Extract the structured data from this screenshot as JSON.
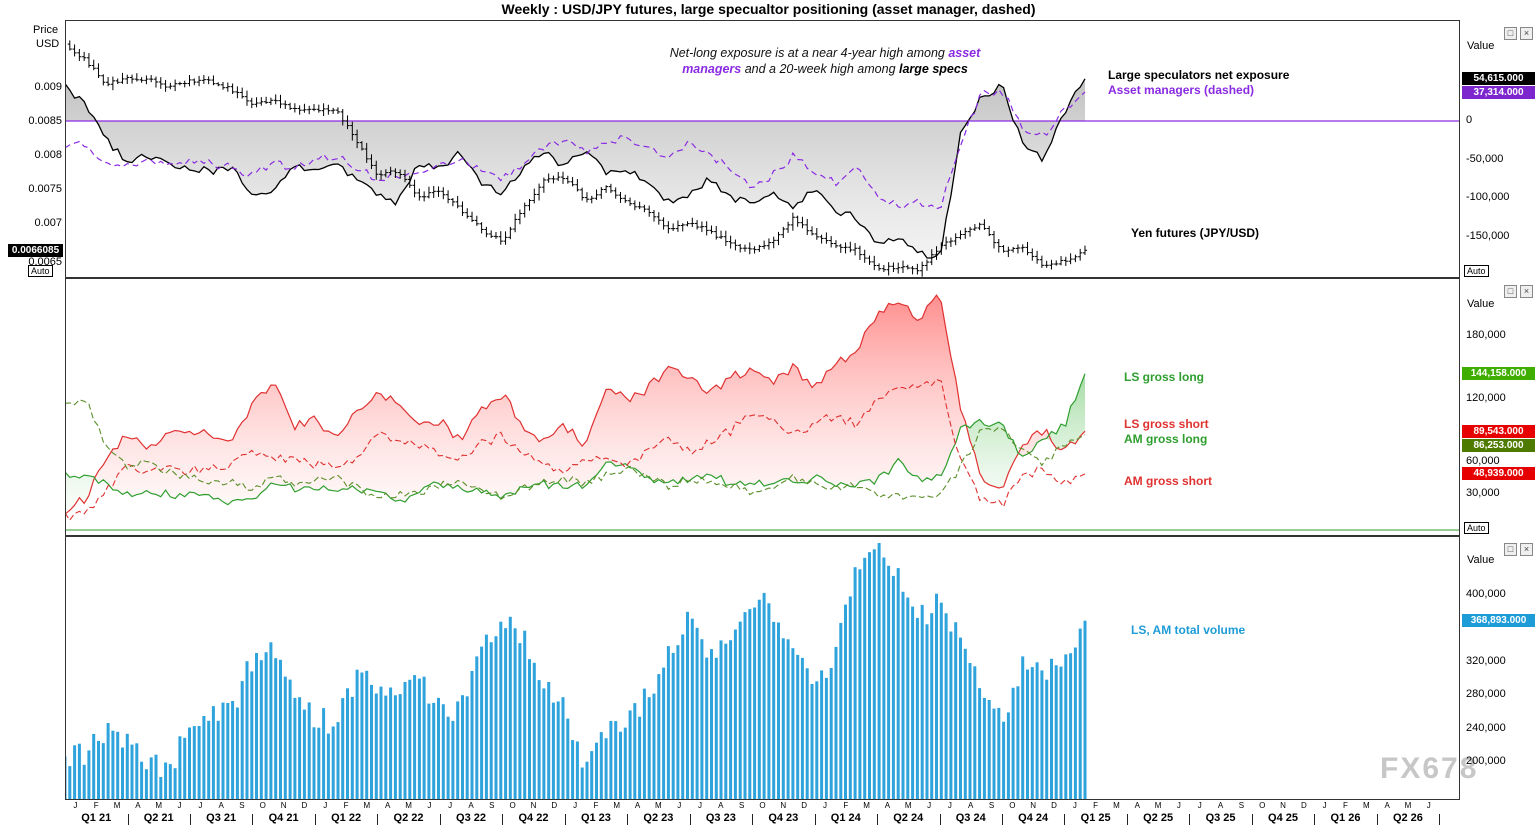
{
  "title": "Weekly : USD/JPY futures, large specualtor positioning (asset manager, dashed)",
  "watermark": "FX678",
  "auto_button_label": "Auto",
  "icons": {
    "restore": "□",
    "close": "×"
  },
  "colors": {
    "purple": "#8A2BE2",
    "black": "#000000",
    "red": "#E03131",
    "green": "#2E9E2E",
    "olive_green": "#5A8F29",
    "blue_bar": "#2FA3DC",
    "badge_black": "#000000",
    "badge_purple": "#7D26CD",
    "badge_green": "#3FAE00",
    "badge_dark_green": "#4F7A00",
    "badge_red": "#E60000",
    "badge_blue": "#1E9CD7"
  },
  "legends": {
    "ls_net": "Large speculators net exposure",
    "am_net": "Asset managers (dashed)",
    "yen": "Yen futures (JPY/USD)",
    "ls_long": "LS gross long",
    "ls_short": "LS gross short",
    "am_long": "AM gross long",
    "am_short": "AM gross short",
    "volume": "LS, AM total volume"
  },
  "annotation": {
    "l1a": "Net-long exposure is at a near 4-year high among ",
    "l1b": "asset",
    "l2a": "managers",
    "l2b": " and a 20-week high among ",
    "l2c": "large specs"
  },
  "axes": {
    "price_left": {
      "title1": "Price",
      "title2": "USD",
      "ticks": [
        {
          "t": "0.009",
          "v": 0.009
        },
        {
          "t": "0.0085",
          "v": 0.0085
        },
        {
          "t": "0.008",
          "v": 0.008
        },
        {
          "t": "0.0075",
          "v": 0.0075
        },
        {
          "t": "0.007",
          "v": 0.007
        },
        {
          "t": "0.0065",
          "v": 0.0065
        }
      ],
      "badge": {
        "t": "0.0066085",
        "v": 0.0066085,
        "bg": "badge_black"
      }
    },
    "p1_right": {
      "title": "Value",
      "ticks": [
        {
          "t": "0",
          "v": 0
        },
        {
          "t": "-50,000",
          "v": -50000
        },
        {
          "t": "-100,000",
          "v": -100000
        },
        {
          "t": "-150,000",
          "v": -150000
        }
      ],
      "badges": [
        {
          "t": "54,615.000",
          "v": 54615,
          "bg": "badge_black"
        },
        {
          "t": "37,314.000",
          "v": 37314,
          "bg": "badge_purple"
        }
      ]
    },
    "p2_right": {
      "title": "Value",
      "ticks": [
        {
          "t": "180,000",
          "v": 180000
        },
        {
          "t": "120,000",
          "v": 120000
        },
        {
          "t": "60,000",
          "v": 60000
        },
        {
          "t": "30,000",
          "v": 30000
        }
      ],
      "badges": [
        {
          "t": "144,158.000",
          "v": 144158,
          "bg": "badge_green"
        },
        {
          "t": "89,543.000",
          "v": 89543,
          "bg": "badge_red"
        },
        {
          "t": "86,253.000",
          "v": 86253,
          "bg": "badge_dark_green"
        },
        {
          "t": "48,939.000",
          "v": 48939,
          "bg": "badge_red"
        }
      ]
    },
    "p3_right": {
      "title": "Value",
      "ticks": [
        {
          "t": "400,000",
          "v": 400000
        },
        {
          "t": "320,000",
          "v": 320000
        },
        {
          "t": "280,000",
          "v": 280000
        },
        {
          "t": "240,000",
          "v": 240000
        },
        {
          "t": "200,000",
          "v": 200000
        }
      ],
      "badges": [
        {
          "t": "368,893.000",
          "v": 368893,
          "bg": "badge_blue"
        }
      ]
    },
    "x": {
      "month_letters": "JFMAMJJASONDJFMAMJJASONDJFMAMJJASONDJFMAMJJASONDJFMAMJJASONDJFMAMJ",
      "quarters": [
        "Q1 21",
        "Q2 21",
        "Q3 21",
        "Q4 21",
        "Q1 22",
        "Q2 22",
        "Q3 22",
        "Q4 22",
        "Q1 23",
        "Q2 23",
        "Q3 23",
        "Q4 23",
        "Q1 24",
        "Q2 24",
        "Q3 24",
        "Q4 24",
        "Q1 25",
        "Q2 25",
        "Q3 25",
        "Q4 25",
        "Q1 26",
        "Q2 26"
      ]
    }
  },
  "chart_data": {
    "type": "mixed",
    "frequency": "weekly chart; series values estimated at monthly anchors, Jan 2021 - Feb 2025",
    "x_months_from_jan_2021": [
      0,
      1,
      2,
      3,
      4,
      5,
      6,
      7,
      8,
      9,
      10,
      11,
      12,
      13,
      14,
      15,
      16,
      17,
      18,
      19,
      20,
      21,
      22,
      23,
      24,
      25,
      26,
      27,
      28,
      29,
      30,
      31,
      32,
      33,
      34,
      35,
      36,
      37,
      38,
      39,
      40,
      41,
      42,
      43,
      44,
      45,
      46,
      47,
      48,
      49
    ],
    "panels": [
      {
        "name": "price_and_net_exposure",
        "left_axis": {
          "label": "Price USD",
          "range": [
            0.0062,
            0.01
          ]
        },
        "right_axis": {
          "label": "Value",
          "range": [
            -203000,
            130600
          ]
        },
        "zero_line": {
          "value": 0,
          "color": "purple"
        },
        "series": [
          {
            "name": "yen_futures_jpy_usd",
            "type": "ohlc_bars",
            "axis": "left",
            "color": "black",
            "last_value": 0.0066085,
            "values": [
              0.00965,
              0.0094,
              0.00905,
              0.00915,
              0.00912,
              0.00902,
              0.00911,
              0.0091,
              0.00897,
              0.00877,
              0.00883,
              0.00869,
              0.00868,
              0.00869,
              0.00822,
              0.0077,
              0.00778,
              0.00737,
              0.0075,
              0.0072,
              0.00691,
              0.00673,
              0.00723,
              0.00763,
              0.00769,
              0.00734,
              0.00753,
              0.00733,
              0.00717,
              0.00693,
              0.00703,
              0.00687,
              0.0067,
              0.0066,
              0.00676,
              0.00709,
              0.00681,
              0.00667,
              0.00661,
              0.00634,
              0.00636,
              0.0063,
              0.00666,
              0.00684,
              0.007,
              0.00658,
              0.00666,
              0.00636,
              0.00645,
              0.0066085
            ]
          },
          {
            "name": "large_speculators_net_exposure",
            "type": "area_line",
            "axis": "right",
            "color": "black",
            "fill": "gray_gradient_to_zero",
            "last_value": 54615,
            "values": [
              45000,
              20000,
              -25000,
              -55000,
              -45000,
              -55000,
              -60000,
              -65000,
              -60000,
              -95000,
              -90000,
              -60000,
              -65000,
              -55000,
              -75000,
              -95000,
              -105000,
              -55000,
              -60000,
              -40000,
              -80000,
              -95000,
              -60000,
              -40000,
              -60000,
              -35000,
              -65000,
              -60000,
              -85000,
              -105000,
              -95000,
              -75000,
              -100000,
              -105000,
              -95000,
              -110000,
              -85000,
              -115000,
              -125000,
              -160000,
              -150000,
              -170000,
              -180000,
              -20000,
              30000,
              45000,
              -30000,
              -50000,
              10000,
              54615
            ]
          },
          {
            "name": "asset_managers_net_exposure",
            "type": "dashed_line",
            "axis": "right",
            "color": "purple",
            "last_value": 37314,
            "values": [
              -35000,
              -30000,
              -55000,
              -60000,
              -50000,
              -60000,
              -50000,
              -55000,
              -60000,
              -70000,
              -55000,
              -60000,
              -50000,
              -45000,
              -60000,
              -75000,
              -70000,
              -65000,
              -55000,
              -50000,
              -65000,
              -75000,
              -55000,
              -35000,
              -25000,
              -40000,
              -30000,
              -20000,
              -35000,
              -50000,
              -25000,
              -45000,
              -60000,
              -85000,
              -70000,
              -45000,
              -65000,
              -80000,
              -60000,
              -95000,
              -110000,
              -105000,
              -115000,
              -30000,
              35000,
              40000,
              -10000,
              -20000,
              15000,
              37314
            ]
          }
        ]
      },
      {
        "name": "gross_positions",
        "right_axis": {
          "label": "Value",
          "range": [
            -10000,
            235000
          ]
        },
        "series": [
          {
            "name": "ls_gross_long",
            "type": "line",
            "color": "green",
            "last_value": 144158,
            "values": [
              48000,
              45000,
              40000,
              30000,
              32000,
              30000,
              28000,
              25000,
              22000,
              25000,
              40000,
              35000,
              35000,
              32000,
              35000,
              30000,
              22000,
              35000,
              40000,
              38000,
              30000,
              28000,
              35000,
              40000,
              35000,
              40000,
              60000,
              55000,
              45000,
              42000,
              45000,
              48000,
              40000,
              42000,
              40000,
              42000,
              45000,
              40000,
              38000,
              42000,
              60000,
              45000,
              45000,
              90000,
              100000,
              95000,
              65000,
              80000,
              95000,
              144158
            ]
          },
          {
            "name": "ls_gross_short",
            "type": "line",
            "color": "red",
            "fill": "red_green_band_vs_ls_gross_long",
            "last_value": 89543,
            "values": [
              15000,
              25000,
              65000,
              85000,
              75000,
              85000,
              90000,
              85000,
              80000,
              115000,
              135000,
              95000,
              100000,
              85000,
              110000,
              125000,
              120000,
              95000,
              100000,
              80000,
              110000,
              125000,
              95000,
              80000,
              95000,
              75000,
              130000,
              120000,
              130000,
              150000,
              140000,
              125000,
              140000,
              150000,
              135000,
              150000,
              130000,
              155000,
              165000,
              200000,
              215000,
              195000,
              225000,
              110000,
              45000,
              35000,
              75000,
              90000,
              70000,
              89543
            ]
          },
          {
            "name": "am_gross_long",
            "type": "dashed_line",
            "color": "olive_green",
            "last_value": 86253,
            "values": [
              115000,
              120000,
              75000,
              55000,
              60000,
              50000,
              45000,
              42000,
              40000,
              35000,
              45000,
              40000,
              42000,
              45000,
              35000,
              28000,
              30000,
              32000,
              38000,
              40000,
              32000,
              28000,
              35000,
              42000,
              45000,
              40000,
              48000,
              55000,
              45000,
              38000,
              45000,
              42000,
              38000,
              30000,
              35000,
              45000,
              40000,
              35000,
              40000,
              30000,
              28000,
              30000,
              28000,
              55000,
              90000,
              95000,
              70000,
              60000,
              75000,
              86253
            ]
          },
          {
            "name": "am_gross_short",
            "type": "dashed_line",
            "color": "red",
            "last_value": 48939,
            "values": [
              8000,
              12000,
              35000,
              55000,
              50000,
              55000,
              52000,
              55000,
              58000,
              70000,
              65000,
              62000,
              58000,
              55000,
              65000,
              85000,
              80000,
              75000,
              70000,
              65000,
              78000,
              85000,
              70000,
              55000,
              52000,
              60000,
              62000,
              55000,
              70000,
              85000,
              70000,
              80000,
              90000,
              110000,
              100000,
              85000,
              95000,
              105000,
              95000,
              120000,
              135000,
              130000,
              140000,
              60000,
              25000,
              20000,
              45000,
              55000,
              40000,
              48939
            ]
          }
        ]
      },
      {
        "name": "total_volume",
        "right_axis": {
          "label": "Value",
          "range": [
            155000,
            470000
          ]
        },
        "series": [
          {
            "name": "ls_am_total_volume",
            "type": "bar",
            "color": "blue_bar",
            "last_value": 368893,
            "values": [
              205000,
              210000,
              240000,
              225000,
              200000,
              190000,
              250000,
              255000,
              265000,
              320000,
              330000,
              280000,
              255000,
              245000,
              300000,
              295000,
              290000,
              295000,
              270000,
              260000,
              330000,
              365000,
              350000,
              300000,
              260000,
              195000,
              230000,
              250000,
              280000,
              330000,
              380000,
              330000,
              340000,
              400000,
              380000,
              340000,
              290000,
              330000,
              430000,
              455000,
              430000,
              370000,
              390000,
              350000,
              280000,
              250000,
              320000,
              310000,
              330000,
              368893
            ]
          }
        ]
      }
    ]
  }
}
